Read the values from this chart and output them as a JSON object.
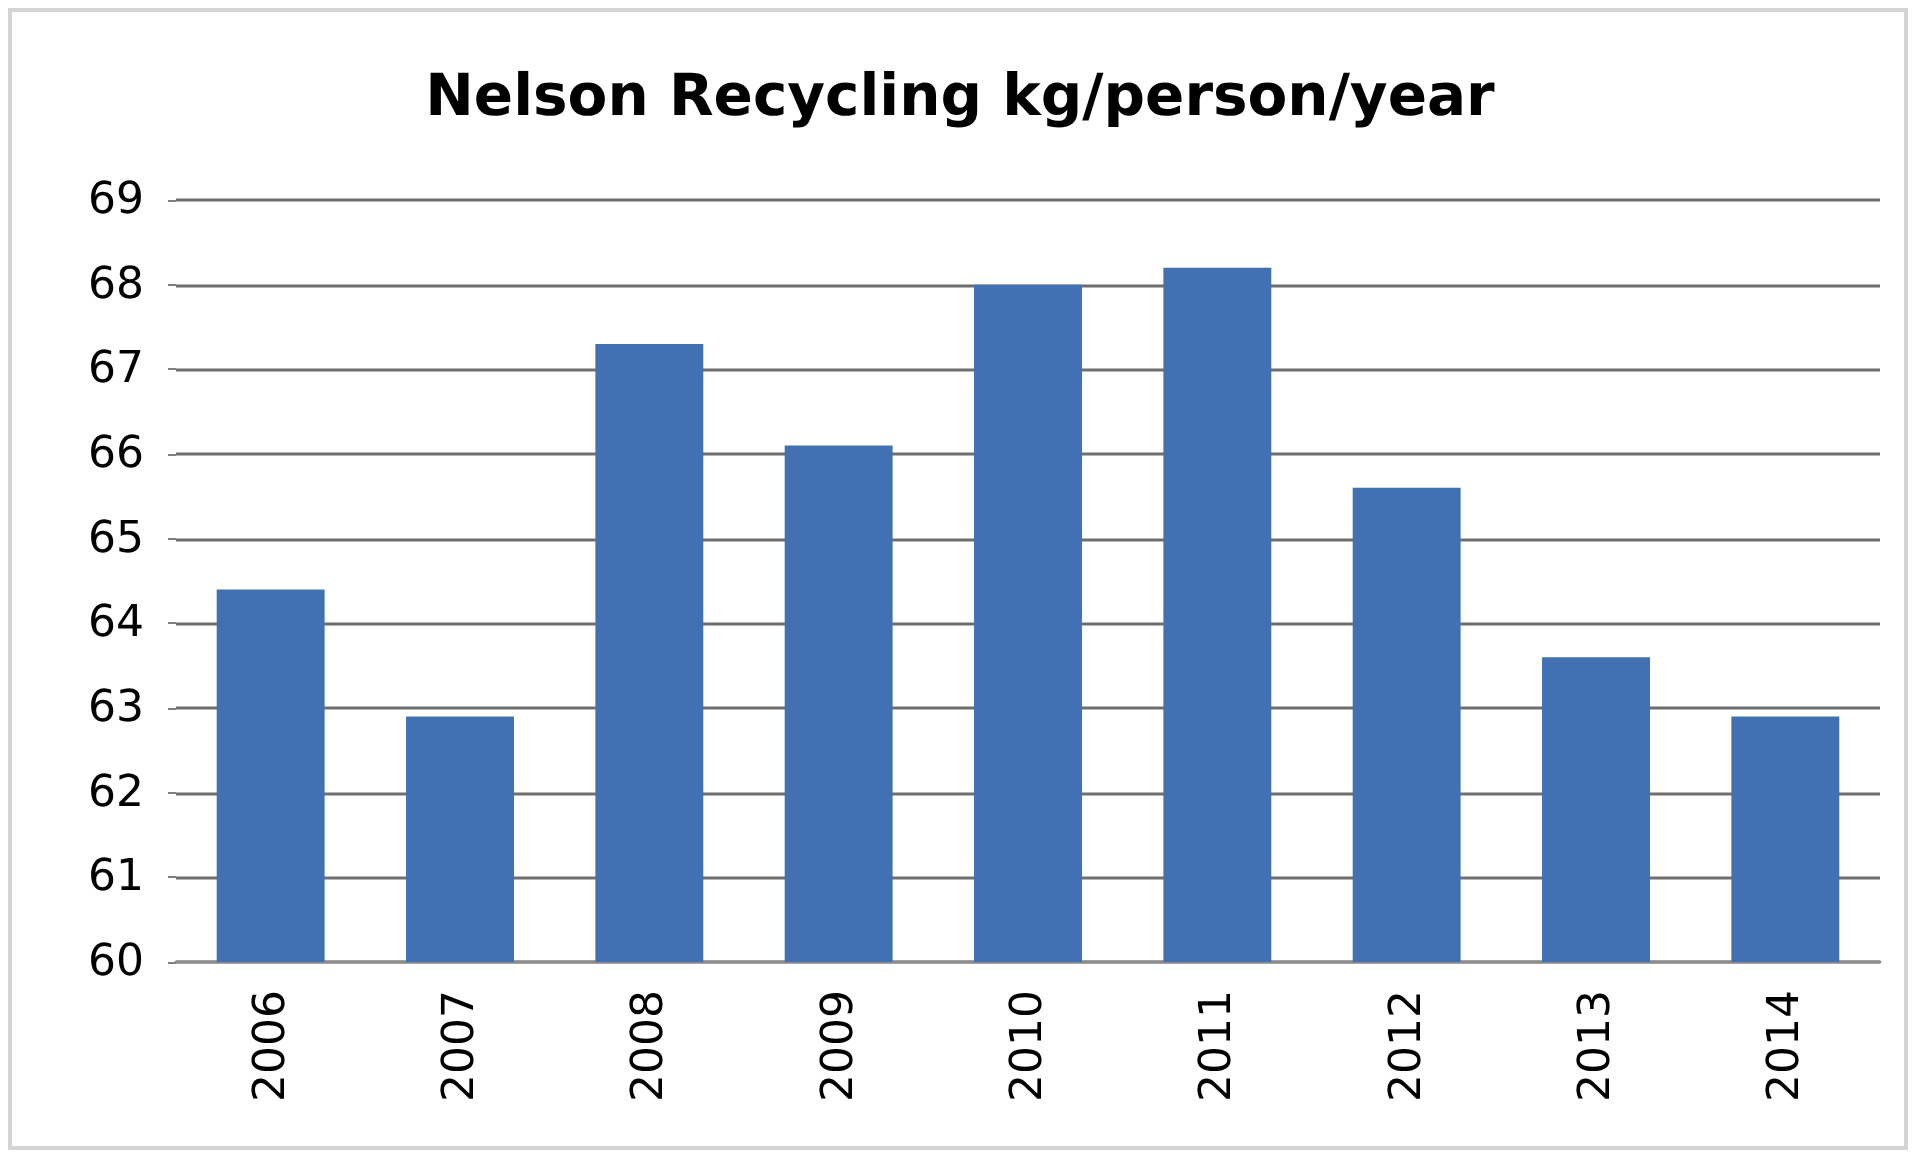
{
  "chart_data": {
    "type": "bar",
    "title": "Nelson Recycling kg/person/year",
    "categories": [
      "2006",
      "2007",
      "2008",
      "2009",
      "2010",
      "2011",
      "2012",
      "2013",
      "2014"
    ],
    "values": [
      64.4,
      62.9,
      67.3,
      66.1,
      68.0,
      68.2,
      65.6,
      63.6,
      62.9
    ],
    "color": "#4170b3",
    "ylim": [
      60,
      69
    ],
    "yticks": [
      60,
      61,
      62,
      63,
      64,
      65,
      66,
      67,
      68,
      69
    ],
    "grid": "y"
  }
}
